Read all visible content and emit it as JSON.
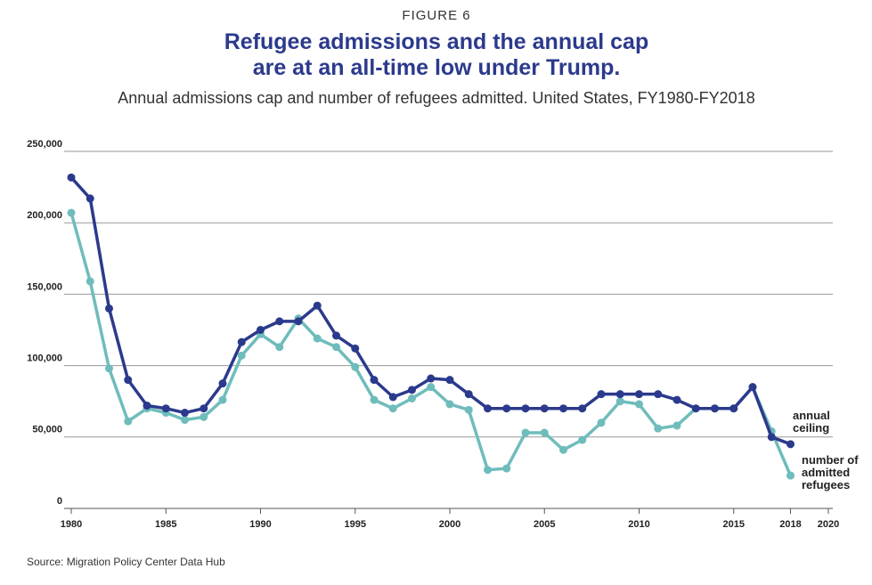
{
  "chart_data": {
    "type": "line",
    "figure_label": "FIGURE 6",
    "title": "Refugee admissions and the annual cap\nare at an all-time low under Trump.",
    "subtitle": "Annual admissions cap and number of refugees admitted. United States, FY1980-FY2018",
    "source": "Source: Migration Policy Center Data Hub",
    "x": [
      1980,
      1981,
      1982,
      1983,
      1984,
      1985,
      1986,
      1987,
      1988,
      1989,
      1990,
      1991,
      1992,
      1993,
      1994,
      1995,
      1996,
      1997,
      1998,
      1999,
      2000,
      2001,
      2002,
      2003,
      2004,
      2005,
      2006,
      2007,
      2008,
      2009,
      2010,
      2011,
      2012,
      2013,
      2014,
      2015,
      2016,
      2017,
      2018
    ],
    "series": [
      {
        "name": "number of\nadmitted\nrefugees",
        "color": "#6fbcbc",
        "values": [
          207000,
          159000,
          98000,
          61000,
          70000,
          67000,
          62000,
          64000,
          76000,
          107000,
          122000,
          113000,
          133000,
          119000,
          113000,
          99000,
          76000,
          70000,
          77000,
          85000,
          73000,
          69000,
          27000,
          28000,
          53000,
          53000,
          41000,
          48000,
          60000,
          75000,
          73000,
          56000,
          58000,
          70000,
          70000,
          70000,
          85000,
          54000,
          23000
        ]
      },
      {
        "name": "annual\nceiling",
        "color": "#2b3a8c",
        "values": [
          231700,
          217000,
          140000,
          90000,
          72000,
          70000,
          67000,
          70000,
          87500,
          116500,
          125000,
          131000,
          131000,
          142000,
          121000,
          112000,
          90000,
          78000,
          83000,
          91000,
          90000,
          80000,
          70000,
          70000,
          70000,
          70000,
          70000,
          70000,
          80000,
          80000,
          80000,
          80000,
          76000,
          70000,
          70000,
          70000,
          85000,
          50000,
          45000
        ]
      }
    ],
    "xlim": [
      1980,
      2020
    ],
    "xticks": [
      1980,
      1985,
      1990,
      1995,
      2000,
      2005,
      2010,
      2015,
      2018,
      2020
    ],
    "ylim": [
      0,
      250000
    ],
    "yticks": [
      0,
      {
        "value": 50000,
        "label": "50,000"
      },
      {
        "value": 100000,
        "label": "100,000"
      },
      {
        "value": 150000,
        "label": "150,000"
      },
      {
        "value": 200000,
        "label": "200,000"
      },
      {
        "value": 250000,
        "label": "250,000"
      }
    ],
    "grid": true
  }
}
